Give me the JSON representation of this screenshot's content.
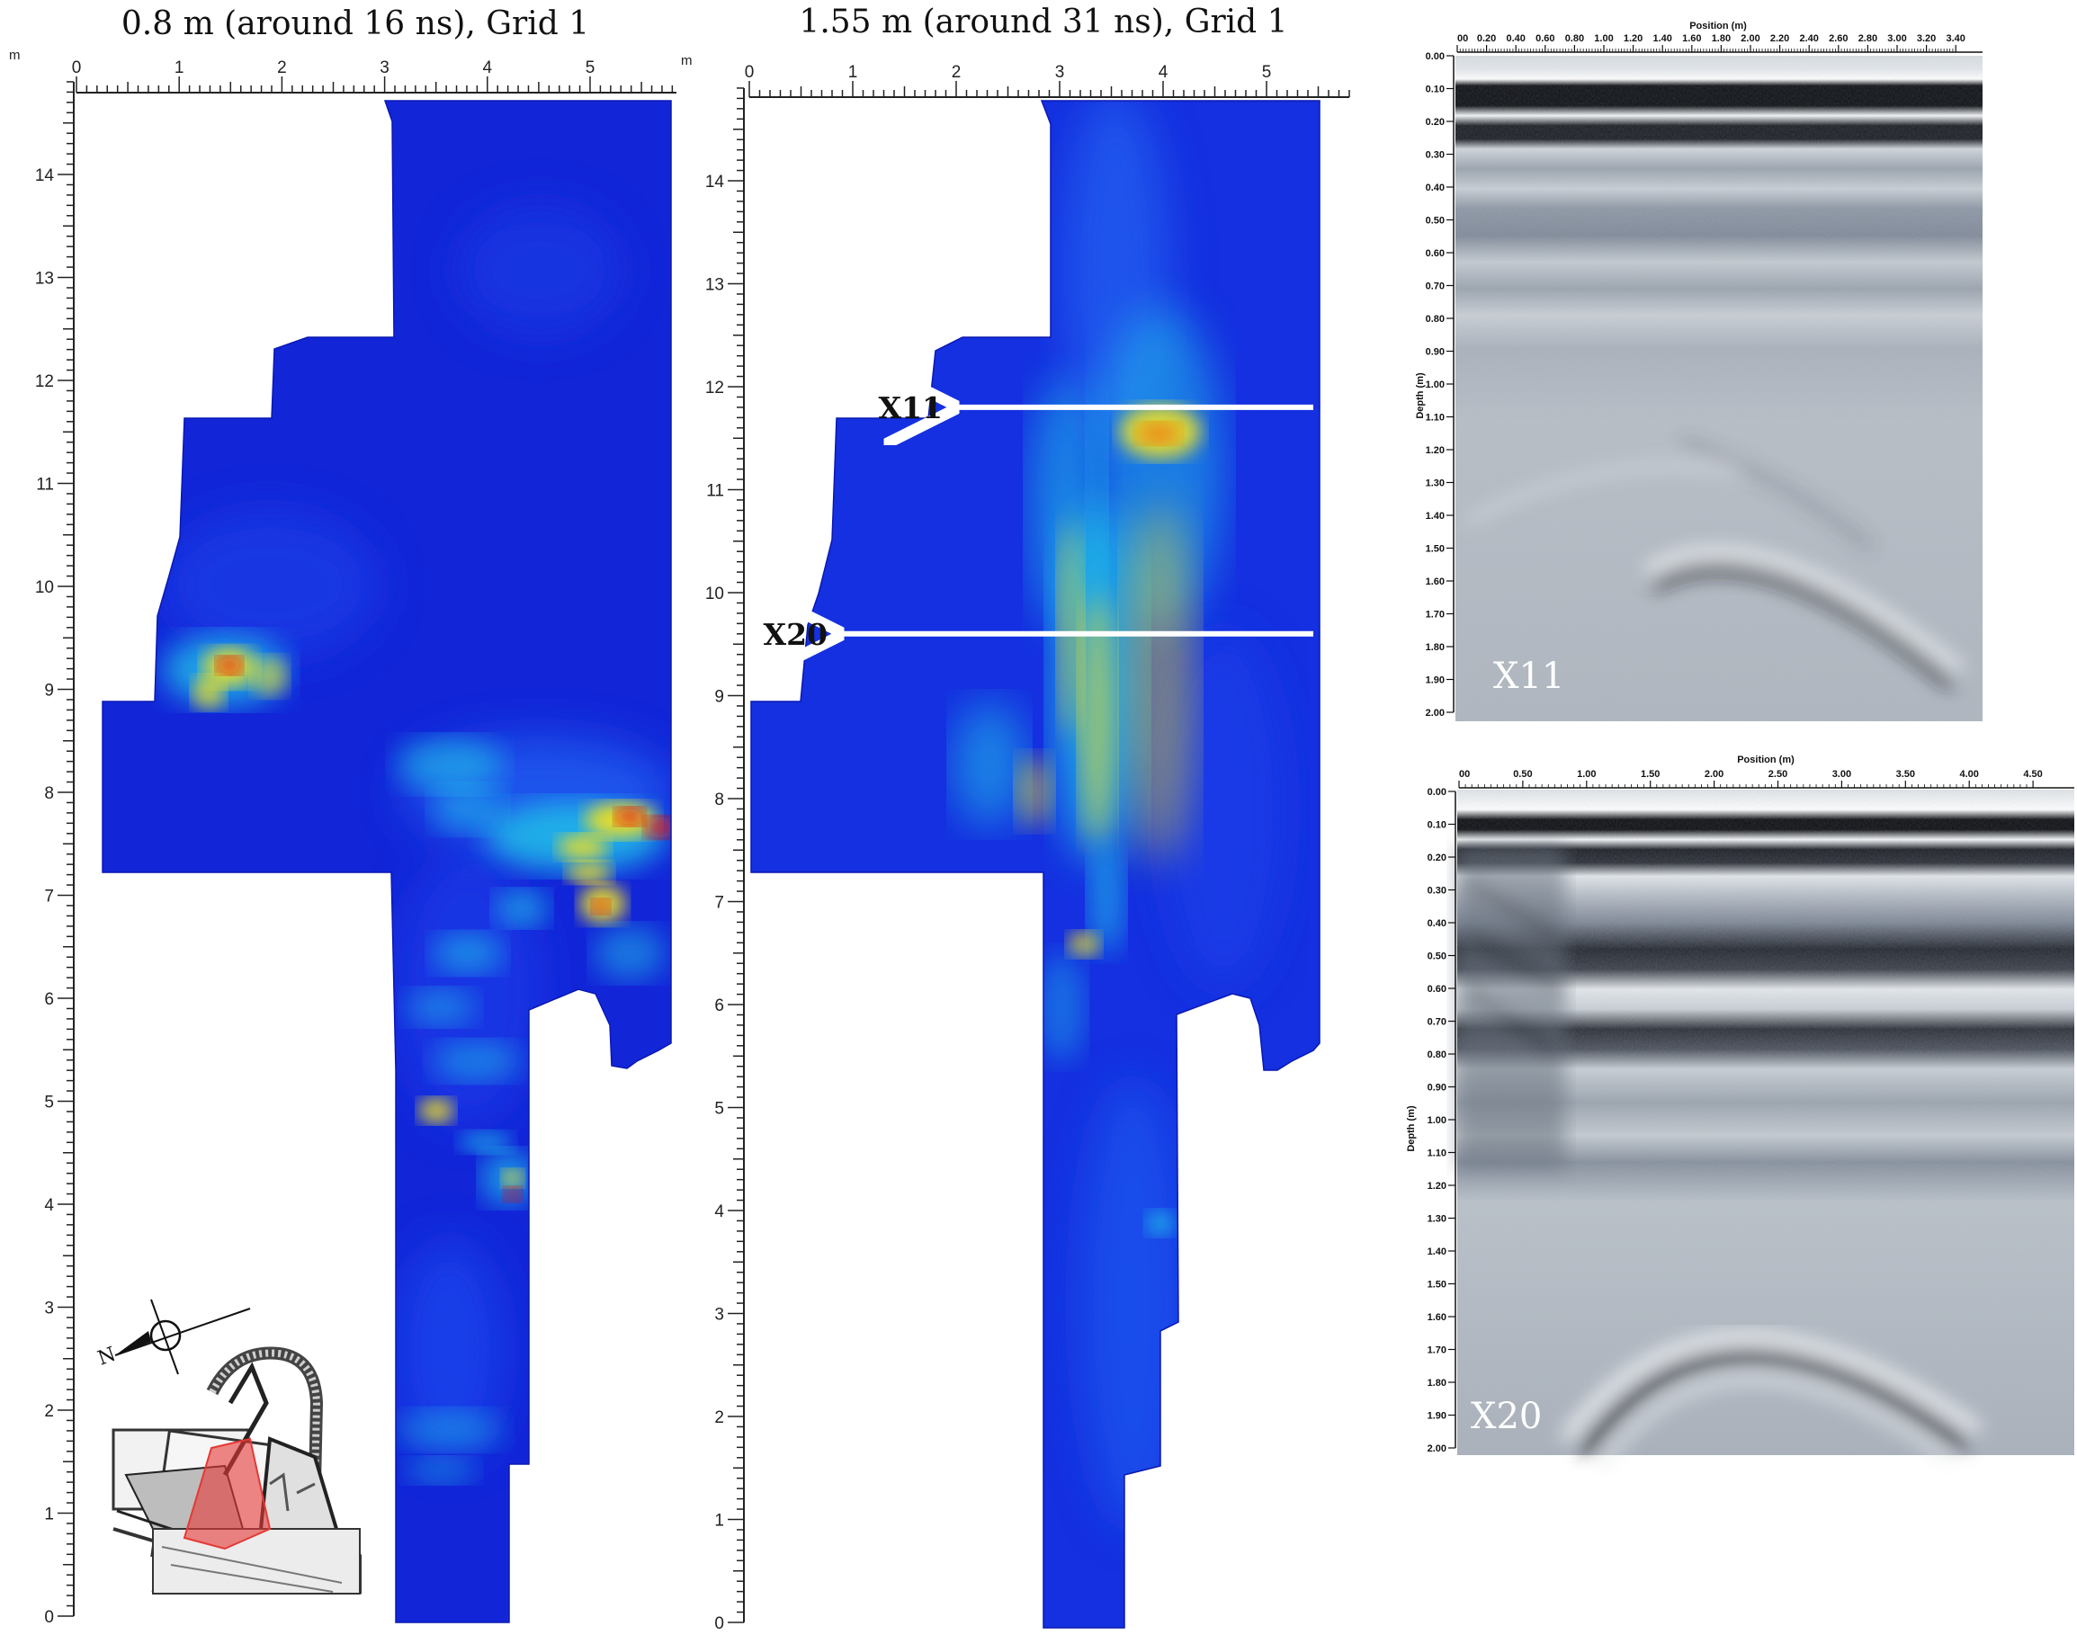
{
  "panels": [
    {
      "id": "depth-slice-1",
      "title": "0.8 m (around 16 ns), Grid 1",
      "x_unit": "m",
      "y_unit": "m",
      "x_ticks": [
        "0",
        "1",
        "2",
        "3",
        "4",
        "5"
      ],
      "y_ticks": [
        "0",
        "1",
        "2",
        "3",
        "4",
        "5",
        "6",
        "7",
        "8",
        "9",
        "10",
        "11",
        "12",
        "13",
        "14"
      ]
    },
    {
      "id": "depth-slice-2",
      "title": "1.55 m (around 31 ns), Grid 1",
      "x_ticks": [
        "0",
        "1",
        "2",
        "3",
        "4",
        "5"
      ],
      "y_ticks": [
        "0",
        "1",
        "2",
        "3",
        "4",
        "5",
        "6",
        "7",
        "8",
        "9",
        "10",
        "11",
        "12",
        "13",
        "14"
      ],
      "arrows": [
        {
          "label": "X11",
          "y": 11.8
        },
        {
          "label": "X20",
          "y": 9.6
        }
      ]
    }
  ],
  "radargrams": [
    {
      "id": "radargram-x11",
      "label": "X11",
      "x_title": "Position (m)",
      "y_title": "Depth (m)",
      "x_ticks": [
        "00",
        "0.20",
        "0.40",
        "0.60",
        "0.80",
        "1.00",
        "1.20",
        "1.40",
        "1.60",
        "1.80",
        "2.00",
        "2.20",
        "2.40",
        "2.60",
        "2.80",
        "3.00",
        "3.20",
        "3.40"
      ],
      "y_ticks": [
        "0.00",
        "0.10",
        "0.20",
        "0.30",
        "0.40",
        "0.50",
        "0.60",
        "0.70",
        "0.80",
        "0.90",
        "1.00",
        "1.10",
        "1.20",
        "1.30",
        "1.40",
        "1.50",
        "1.60",
        "1.70",
        "1.80",
        "1.90",
        "2.00"
      ]
    },
    {
      "id": "radargram-x20",
      "label": "X20",
      "x_title": "Position (m)",
      "y_title": "Depth (m)",
      "x_ticks": [
        "00",
        "0.50",
        "1.00",
        "1.50",
        "2.00",
        "2.50",
        "3.00",
        "3.50",
        "4.00",
        "4.50"
      ],
      "y_ticks": [
        "0.00",
        "0.10",
        "0.20",
        "0.30",
        "0.40",
        "0.50",
        "0.60",
        "0.70",
        "0.80",
        "0.90",
        "1.00",
        "1.10",
        "1.20",
        "1.30",
        "1.40",
        "1.50",
        "1.60",
        "1.70",
        "1.80",
        "1.90",
        "2.00"
      ]
    }
  ],
  "inset": {
    "north_label": "N",
    "highlight_color": "#e53935"
  },
  "colors": {
    "low": "#1020d8",
    "mid": "#20c8e8",
    "high": "#f0e020",
    "peak": "#e81010"
  }
}
